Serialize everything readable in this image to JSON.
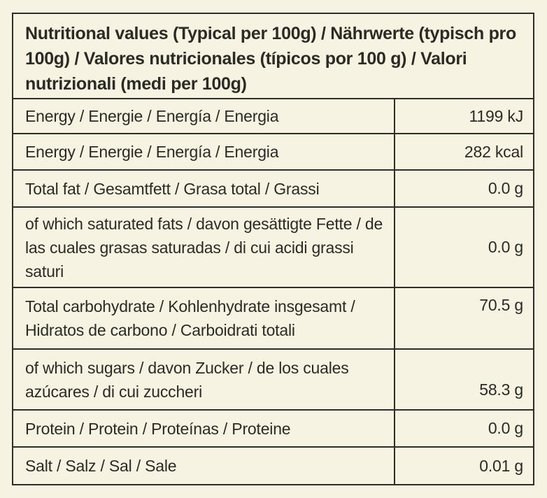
{
  "colors": {
    "background": "#f7f3e2",
    "text": "#2b2a24",
    "border": "#2e2d26"
  },
  "table": {
    "header": "Nutritional values (Typical per 100g) / Nährwerte (typisch pro 100g) / Valores nutricionales (típicos por 100 g) / Valori nutrizionali (medi per 100g)",
    "rows": [
      {
        "label": "Energy / Energie / Energía / Energia",
        "value": "1199 kJ"
      },
      {
        "label": "Energy / Energie / Energía / Energia",
        "value": "282 kcal"
      },
      {
        "label": "Total fat / Gesamtfett / Grasa total / Grassi",
        "value": "0.0 g"
      },
      {
        "label": "of which saturated fats / davon gesättigte Fette / de las cuales grasas saturadas / di cui acidi grassi saturi",
        "value": "0.0 g"
      },
      {
        "label": "Total carbohydrate / Kohlenhydrate insgesamt / Hidratos de carbono / Carboidrati totali",
        "value": "70.5 g"
      },
      {
        "label": "of which sugars / davon Zucker / de los cuales azúcares / di cui zuccheri",
        "value": "58.3 g"
      },
      {
        "label": "Protein / Protein / Proteínas / Proteine",
        "value": "0.0 g"
      },
      {
        "label": "Salt / Salz / Sal / Sale",
        "value": "0.01 g"
      }
    ]
  }
}
